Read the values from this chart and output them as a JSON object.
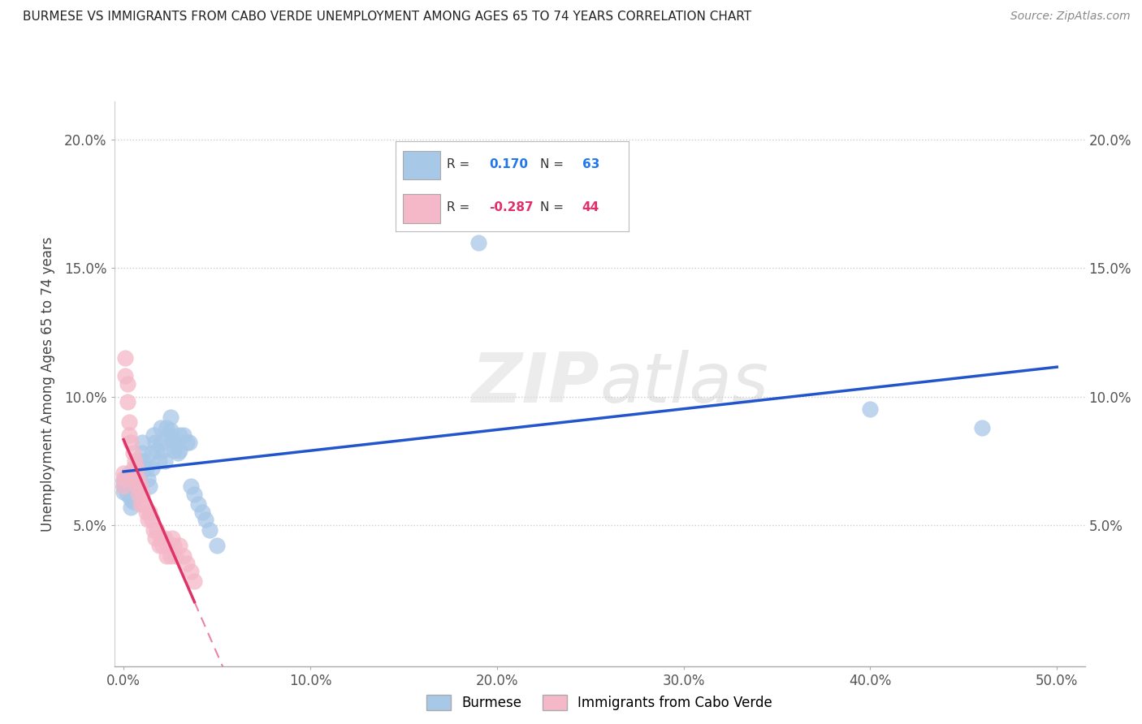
{
  "title": "BURMESE VS IMMIGRANTS FROM CABO VERDE UNEMPLOYMENT AMONG AGES 65 TO 74 YEARS CORRELATION CHART",
  "source": "Source: ZipAtlas.com",
  "ylabel": "Unemployment Among Ages 65 to 74 years",
  "x_tick_labels": [
    "0.0%",
    "10.0%",
    "20.0%",
    "30.0%",
    "40.0%",
    "50.0%"
  ],
  "x_tick_values": [
    0.0,
    0.1,
    0.2,
    0.3,
    0.4,
    0.5
  ],
  "y_tick_labels": [
    "5.0%",
    "10.0%",
    "15.0%",
    "20.0%"
  ],
  "y_tick_values": [
    0.05,
    0.1,
    0.15,
    0.2
  ],
  "xlim": [
    -0.005,
    0.515
  ],
  "ylim": [
    -0.005,
    0.215
  ],
  "burmese_R": "0.170",
  "burmese_N": "63",
  "cabo_verde_R": "-0.287",
  "cabo_verde_N": "44",
  "blue_color": "#a8c8e8",
  "pink_color": "#f4b8c8",
  "line_blue": "#2255cc",
  "line_pink": "#dd3366",
  "watermark_zip": "ZIP",
  "watermark_atlas": "atlas",
  "burmese_x": [
    0.0,
    0.0,
    0.0,
    0.001,
    0.001,
    0.002,
    0.002,
    0.003,
    0.003,
    0.003,
    0.004,
    0.004,
    0.005,
    0.005,
    0.005,
    0.006,
    0.006,
    0.007,
    0.007,
    0.008,
    0.008,
    0.009,
    0.009,
    0.01,
    0.01,
    0.01,
    0.011,
    0.012,
    0.013,
    0.014,
    0.015,
    0.015,
    0.016,
    0.017,
    0.018,
    0.019,
    0.02,
    0.02,
    0.021,
    0.022,
    0.023,
    0.024,
    0.025,
    0.025,
    0.026,
    0.027,
    0.028,
    0.029,
    0.03,
    0.03,
    0.032,
    0.034,
    0.035,
    0.036,
    0.038,
    0.04,
    0.042,
    0.044,
    0.046,
    0.05,
    0.19,
    0.4,
    0.46
  ],
  "burmese_y": [
    0.067,
    0.065,
    0.063,
    0.068,
    0.065,
    0.065,
    0.062,
    0.07,
    0.068,
    0.065,
    0.06,
    0.057,
    0.067,
    0.063,
    0.059,
    0.065,
    0.062,
    0.072,
    0.068,
    0.068,
    0.065,
    0.075,
    0.07,
    0.082,
    0.078,
    0.072,
    0.075,
    0.072,
    0.068,
    0.065,
    0.078,
    0.072,
    0.085,
    0.082,
    0.079,
    0.075,
    0.088,
    0.082,
    0.079,
    0.075,
    0.088,
    0.085,
    0.092,
    0.087,
    0.083,
    0.079,
    0.082,
    0.078,
    0.085,
    0.079,
    0.085,
    0.082,
    0.082,
    0.065,
    0.062,
    0.058,
    0.055,
    0.052,
    0.048,
    0.042,
    0.16,
    0.095,
    0.088
  ],
  "cabo_verde_x": [
    0.0,
    0.0,
    0.0,
    0.001,
    0.001,
    0.002,
    0.002,
    0.003,
    0.003,
    0.004,
    0.005,
    0.005,
    0.006,
    0.006,
    0.007,
    0.007,
    0.008,
    0.008,
    0.009,
    0.009,
    0.01,
    0.011,
    0.012,
    0.013,
    0.014,
    0.015,
    0.016,
    0.017,
    0.018,
    0.019,
    0.02,
    0.021,
    0.022,
    0.023,
    0.024,
    0.025,
    0.026,
    0.027,
    0.028,
    0.03,
    0.032,
    0.034,
    0.036,
    0.038
  ],
  "cabo_verde_y": [
    0.07,
    0.068,
    0.065,
    0.115,
    0.108,
    0.105,
    0.098,
    0.09,
    0.085,
    0.082,
    0.078,
    0.072,
    0.075,
    0.068,
    0.072,
    0.065,
    0.068,
    0.062,
    0.065,
    0.058,
    0.062,
    0.058,
    0.055,
    0.052,
    0.055,
    0.052,
    0.048,
    0.045,
    0.048,
    0.042,
    0.045,
    0.042,
    0.045,
    0.038,
    0.042,
    0.038,
    0.045,
    0.042,
    0.038,
    0.042,
    0.038,
    0.035,
    0.032,
    0.028
  ]
}
